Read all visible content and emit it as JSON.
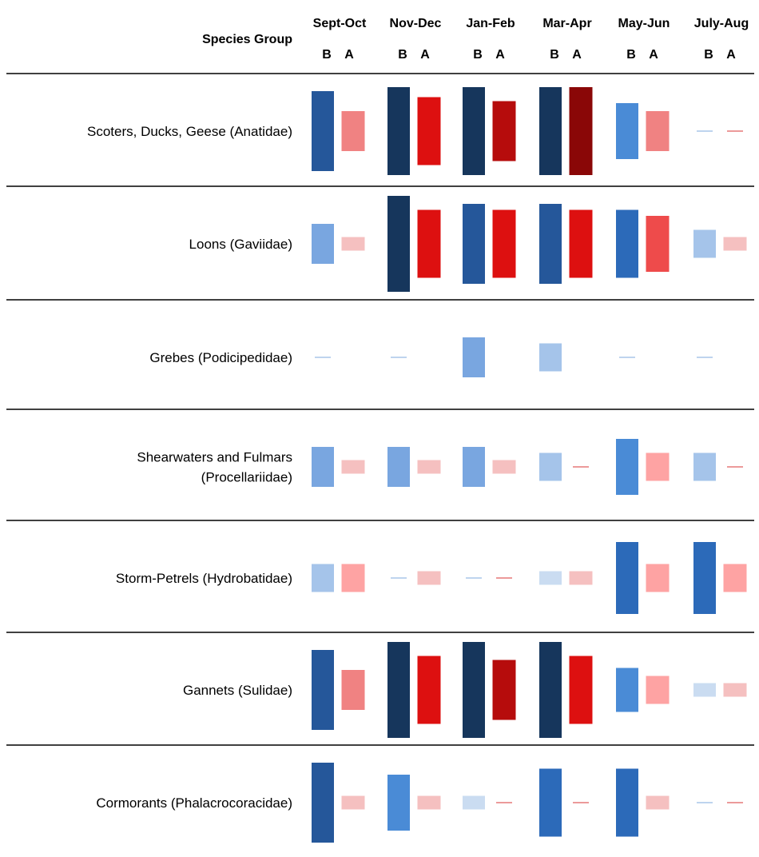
{
  "chart_data": {
    "type": "heatmap",
    "header": {
      "species_group_label": "Species Group",
      "b_label": "B",
      "a_label": "A"
    },
    "periods": [
      "Sept-Oct",
      "Nov-Dec",
      "Jan-Feb",
      "Mar-Apr",
      "May-Jun",
      "July-Aug"
    ],
    "max_level": 12,
    "groups": [
      {
        "label_lines": [
          "Scoters, Ducks, Geese (Anatidae)"
        ],
        "B": [
          10,
          11,
          11,
          11,
          7,
          0
        ],
        "A": [
          5,
          8.5,
          7.5,
          11,
          5,
          0
        ],
        "B_color": [
          "#25579a",
          "#16365c",
          "#16365c",
          "#16365c",
          "#4a8bd6",
          "#a9c6e8"
        ],
        "A_color": [
          "#f08282",
          "#dd1010",
          "#b60c0c",
          "#8a0707",
          "#f08282",
          "#e67878"
        ]
      },
      {
        "label_lines": [
          "Loons (Gaviidae)"
        ],
        "B": [
          5,
          12,
          10,
          10,
          8.5,
          3.5
        ],
        "A": [
          1.7,
          8.5,
          8.5,
          8.5,
          7,
          1.7
        ],
        "B_color": [
          "#79a6e0",
          "#16365c",
          "#25579a",
          "#25579a",
          "#2c6ab9",
          "#a5c4ea"
        ],
        "A_color": [
          "#f5c0c0",
          "#dd1010",
          "#dd1010",
          "#dd1010",
          "#ee4b4b",
          "#f5c0c0"
        ]
      },
      {
        "label_lines": [
          "Grebes (Podicipedidae)"
        ],
        "B": [
          0,
          0,
          5,
          3.5,
          0,
          0
        ],
        "A": [
          null,
          null,
          null,
          null,
          null,
          null
        ],
        "B_color": [
          "#a9c6e8",
          "#a9c6e8",
          "#79a6e0",
          "#a5c4ea",
          "#a9c6e8",
          "#a9c6e8"
        ],
        "A_color": [
          "#ffffff",
          "#ffffff",
          "#ffffff",
          "#ffffff",
          "#ffffff",
          "#ffffff"
        ]
      },
      {
        "label_lines": [
          "Shearwaters and Fulmars",
          "(Procellariidae)"
        ],
        "B": [
          5,
          5,
          5,
          3.5,
          7,
          3.5
        ],
        "A": [
          1.7,
          1.7,
          1.7,
          0,
          3.5,
          0
        ],
        "B_color": [
          "#79a6e0",
          "#79a6e0",
          "#79a6e0",
          "#a5c4ea",
          "#4a8bd6",
          "#a5c4ea"
        ],
        "A_color": [
          "#f5c0c0",
          "#f5c0c0",
          "#f5c0c0",
          "#e67878",
          "#fea3a3",
          "#e67878"
        ]
      },
      {
        "label_lines": [
          "Storm-Petrels (Hydrobatidae)"
        ],
        "B": [
          3.5,
          0,
          0,
          1.7,
          9,
          9
        ],
        "A": [
          3.5,
          1.7,
          0,
          1.7,
          3.5,
          3.5
        ],
        "B_color": [
          "#a5c4ea",
          "#a9c6e8",
          "#a9c6e8",
          "#cadcf1",
          "#2c6ab9",
          "#2c6ab9"
        ],
        "A_color": [
          "#fea3a3",
          "#f5c0c0",
          "#e67878",
          "#f5c0c0",
          "#fea3a3",
          "#fea3a3"
        ]
      },
      {
        "label_lines": [
          "Gannets (Sulidae)"
        ],
        "B": [
          10,
          12,
          12,
          12,
          5.5,
          1.7
        ],
        "A": [
          5,
          8.5,
          7.5,
          8.5,
          3.5,
          1.7
        ],
        "B_color": [
          "#25579a",
          "#16365c",
          "#16365c",
          "#16365c",
          "#4a8bd6",
          "#cadcf1"
        ],
        "A_color": [
          "#f08282",
          "#dd1010",
          "#b60c0c",
          "#dd1010",
          "#fea3a3",
          "#f5c0c0"
        ]
      },
      {
        "label_lines": [
          "Cormorants (Phalacrocoracidae)"
        ],
        "B": [
          10,
          7,
          1.7,
          8.5,
          8.5,
          0
        ],
        "A": [
          1.7,
          1.7,
          0,
          0,
          1.7,
          0
        ],
        "B_color": [
          "#25579a",
          "#4a8bd6",
          "#cadcf1",
          "#2c6ab9",
          "#2c6ab9",
          "#a9c6e8"
        ],
        "A_color": [
          "#f5c0c0",
          "#f5c0c0",
          "#e67878",
          "#e67878",
          "#f5c0c0",
          "#e67878"
        ]
      }
    ]
  }
}
